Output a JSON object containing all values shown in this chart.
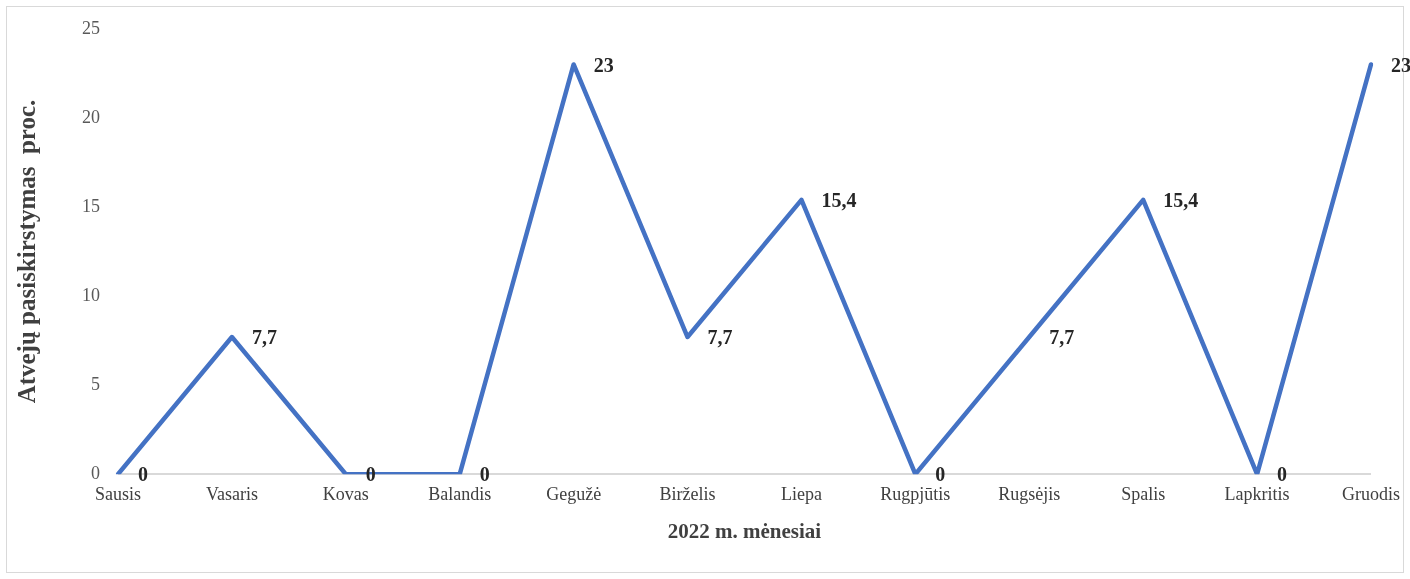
{
  "chart_data": {
    "type": "line",
    "xlabel": "2022 m. mėnesiai",
    "ylabel": "Atvejų pasiskirstymas  proc.",
    "categories": [
      "Sausis",
      "Vasaris",
      "Kovas",
      "Balandis",
      "Gegužė",
      "Birželis",
      "Liepa",
      "Rugpjūtis",
      "Rugsėjis",
      "Spalis",
      "Lapkritis",
      "Gruodis"
    ],
    "series": [
      {
        "color": "#4472c4",
        "values": [
          0,
          7.7,
          0,
          0,
          23,
          7.7,
          15.4,
          0,
          7.7,
          15.4,
          0,
          23
        ],
        "value_labels": [
          "0",
          "7,7",
          "0",
          "0",
          "23",
          "7,7",
          "15,4",
          "0",
          "7,7",
          "15,4",
          "0",
          "23"
        ]
      }
    ],
    "ylim": [
      0,
      25
    ],
    "yticks": [
      0,
      5,
      10,
      15,
      20,
      25
    ],
    "grid": false,
    "legend": false,
    "marker": "none",
    "line_style": "solid"
  }
}
